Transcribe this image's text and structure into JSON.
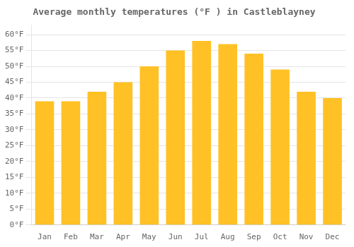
{
  "chart_data": {
    "type": "bar",
    "title": "Average monthly temperatures (°F ) in Castleblayney",
    "categories": [
      "Jan",
      "Feb",
      "Mar",
      "Apr",
      "May",
      "Jun",
      "Jul",
      "Aug",
      "Sep",
      "Oct",
      "Nov",
      "Dec"
    ],
    "values": [
      39,
      39,
      42,
      45,
      50,
      55,
      58,
      57,
      54,
      49,
      42,
      40
    ],
    "color": "#FFC125",
    "ylim": [
      0,
      63
    ],
    "yticks": [
      {
        "value": 0,
        "label": "0°F"
      },
      {
        "value": 5,
        "label": "5°F"
      },
      {
        "value": 10,
        "label": "10°F"
      },
      {
        "value": 15,
        "label": "15°F"
      },
      {
        "value": 20,
        "label": "20°F"
      },
      {
        "value": 25,
        "label": "25°F"
      },
      {
        "value": 30,
        "label": "30°F"
      },
      {
        "value": 35,
        "label": "35°F"
      },
      {
        "value": 40,
        "label": "40°F"
      },
      {
        "value": 45,
        "label": "45°F"
      },
      {
        "value": 50,
        "label": "50°F"
      },
      {
        "value": 55,
        "label": "55°F"
      },
      {
        "value": 60,
        "label": "60°F"
      }
    ],
    "grid": true
  }
}
